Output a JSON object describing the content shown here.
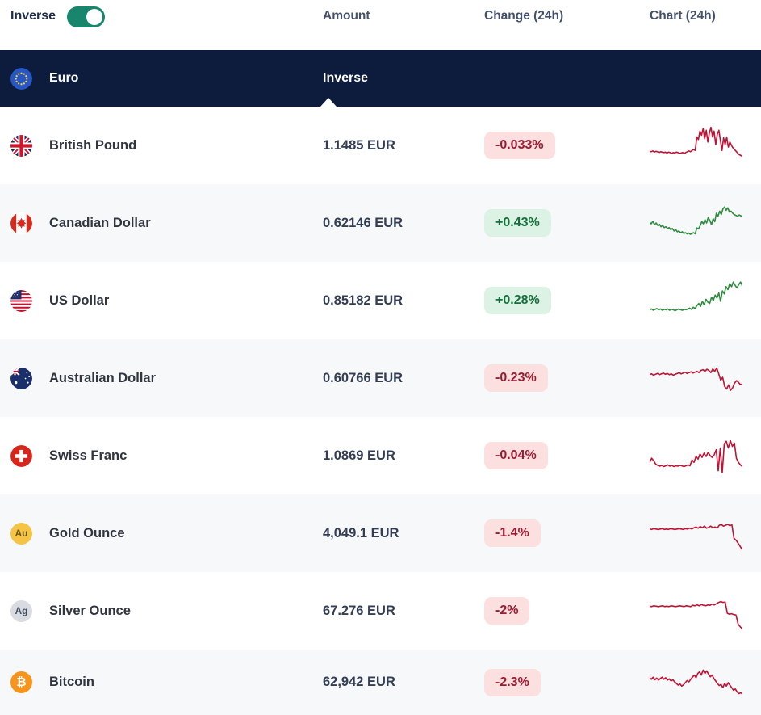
{
  "toolbar": {
    "inverse_label": "Inverse",
    "toggle_on": true,
    "columns": {
      "amount": "Amount",
      "change": "Change (24h)",
      "chart": "Chart (24h)"
    }
  },
  "base_row": {
    "name": "Euro",
    "icon": "eu-flag",
    "inverse_label": "Inverse"
  },
  "colors": {
    "navy_band": "#0d1b3d",
    "toggle_on": "#17866c",
    "row_alt_bg": "#f7f8f9",
    "badge_down_bg": "#fcdfdf",
    "badge_down_text": "#9b1b32",
    "badge_up_bg": "#dbf2e5",
    "badge_up_text": "#15713c",
    "spark_down": "#c01334",
    "spark_up": "#2e8b3e"
  },
  "rows": [
    {
      "name": "British Pound",
      "icon": "gb-flag",
      "amount": "1.1485 EUR",
      "change": "-0.033%",
      "direction": "down",
      "spark": [
        36,
        35,
        37,
        34,
        36,
        35,
        33,
        35,
        34,
        33,
        34,
        32,
        34,
        33,
        31,
        33,
        32,
        34,
        33,
        31,
        32,
        33,
        31,
        33,
        35,
        37,
        35,
        38,
        40,
        38,
        70,
        64,
        84,
        74,
        90,
        66,
        86,
        58,
        80,
        93,
        70,
        84,
        52,
        76,
        86,
        62,
        38,
        68,
        52,
        70,
        46,
        58,
        50,
        44,
        40,
        36,
        32,
        28,
        26,
        24
      ]
    },
    {
      "name": "Canadian Dollar",
      "icon": "ca-flag",
      "amount": "0.62146 EUR",
      "change": "+0.43%",
      "direction": "up",
      "spark": [
        52,
        48,
        54,
        46,
        50,
        44,
        47,
        41,
        44,
        39,
        41,
        37,
        39,
        34,
        37,
        31,
        34,
        29,
        31,
        27,
        29,
        25,
        27,
        24,
        26,
        23,
        25,
        27,
        24,
        38,
        36,
        43,
        53,
        48,
        58,
        50,
        63,
        56,
        46,
        60,
        53,
        73,
        66,
        78,
        70,
        83,
        88,
        80,
        86,
        76,
        78,
        73,
        70,
        68,
        66,
        69,
        67,
        66
      ]
    },
    {
      "name": "US Dollar",
      "icon": "us-flag",
      "amount": "0.85182 EUR",
      "change": "+0.28%",
      "direction": "up",
      "spark": [
        28,
        30,
        27,
        29,
        31,
        28,
        30,
        27,
        29,
        28,
        30,
        27,
        29,
        28,
        26,
        28,
        30,
        28,
        27,
        29,
        28,
        30,
        32,
        29,
        34,
        31,
        38,
        43,
        36,
        48,
        40,
        53,
        46,
        43,
        58,
        50,
        63,
        56,
        68,
        48,
        73,
        66,
        83,
        76,
        90,
        83,
        94,
        86,
        80,
        88,
        94,
        84
      ]
    },
    {
      "name": "Australian Dollar",
      "icon": "au-flag",
      "amount": "0.60766 EUR",
      "change": "-0.23%",
      "direction": "down",
      "spark": [
        58,
        60,
        57,
        59,
        61,
        58,
        60,
        62,
        59,
        61,
        58,
        60,
        57,
        59,
        61,
        63,
        60,
        62,
        64,
        61,
        63,
        65,
        62,
        64,
        66,
        63,
        68,
        70,
        66,
        71,
        68,
        63,
        72,
        66,
        74,
        60,
        45,
        52,
        30,
        24,
        34,
        21,
        27,
        38,
        44,
        40,
        34,
        36
      ]
    },
    {
      "name": "Swiss Franc",
      "icon": "ch-flag",
      "amount": "1.0869 EUR",
      "change": "-0.04%",
      "direction": "down",
      "spark": [
        34,
        44,
        38,
        30,
        27,
        25,
        27,
        24,
        26,
        28,
        25,
        27,
        24,
        26,
        25,
        27,
        26,
        24,
        26,
        28,
        26,
        40,
        34,
        48,
        42,
        54,
        46,
        56,
        48,
        58,
        50,
        46,
        52,
        64,
        14,
        68,
        10,
        78,
        84,
        68,
        86,
        72,
        80,
        44,
        34,
        28,
        24
      ]
    },
    {
      "name": "Gold Ounce",
      "icon": "gold",
      "amount": "4,049.1 EUR",
      "change": "-1.4%",
      "direction": "down",
      "spark": [
        60,
        59,
        61,
        60,
        59,
        60,
        61,
        59,
        60,
        59,
        61,
        60,
        59,
        60,
        61,
        60,
        59,
        61,
        60,
        62,
        60,
        63,
        65,
        62,
        66,
        63,
        67,
        62,
        64,
        67,
        63,
        65,
        62,
        69,
        71,
        67,
        69,
        71,
        68,
        70,
        38,
        33,
        26,
        18,
        10
      ]
    },
    {
      "name": "Silver Ounce",
      "icon": "silver",
      "amount": "67.276 EUR",
      "change": "-2%",
      "direction": "down",
      "spark": [
        61,
        60,
        62,
        61,
        60,
        61,
        62,
        60,
        61,
        60,
        62,
        61,
        60,
        61,
        62,
        61,
        60,
        62,
        61,
        60,
        63,
        62,
        64,
        62,
        65,
        63,
        62,
        64,
        63,
        66,
        64,
        67,
        70,
        72,
        70,
        71,
        44,
        42,
        43,
        41,
        40,
        18,
        12,
        7
      ]
    },
    {
      "name": "Bitcoin",
      "icon": "btc",
      "amount": "62,942 EUR",
      "change": "-2.3%",
      "direction": "down",
      "spark": [
        62,
        58,
        63,
        57,
        61,
        56,
        60,
        63,
        58,
        62,
        56,
        59,
        54,
        57,
        52,
        48,
        44,
        47,
        42,
        45,
        50,
        55,
        52,
        58,
        63,
        68,
        62,
        72,
        76,
        68,
        80,
        72,
        78,
        70,
        64,
        68,
        60,
        54,
        48,
        43,
        46,
        38,
        48,
        42,
        50,
        44,
        38,
        32,
        35,
        28,
        24,
        26,
        23
      ]
    }
  ],
  "metal_icons": {
    "gold": {
      "label": "Au",
      "bg": "#f6c445",
      "text": "#6b520f"
    },
    "silver": {
      "label": "Ag",
      "bg": "#d8dce2",
      "text": "#454e5e"
    },
    "btc": {
      "label": "₿",
      "bg": "#f7941c",
      "text": "#ffffff"
    }
  }
}
